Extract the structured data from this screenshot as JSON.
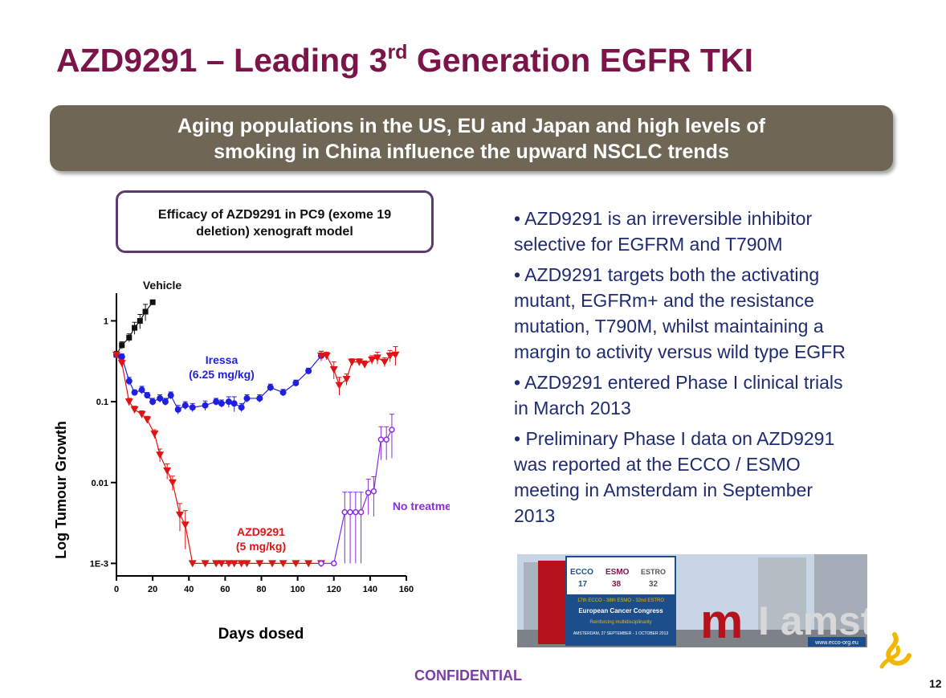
{
  "slide": {
    "title_main": "AZD9291 – Leading 3",
    "title_sup": "rd",
    "title_end": " Generation EGFR TKI",
    "banner_line1": "Aging populations in the US, EU and Japan and high levels of",
    "banner_line2": "smoking in China influence the upward NSCLC trends",
    "efficacy_line1": "Efficacy of AZD9291 in PC9 (exome 19",
    "efficacy_line2": "deletion) xenograft model",
    "bullets": [
      {
        "lines": [
          "• AZD9291 is an irreversible inhibitor",
          "selective for EGFRM and T790M"
        ]
      },
      {
        "lines": [
          "• AZD9291 targets both the activating",
          "mutant, EGFRm+  and the resistance",
          "mutation, T790M, whilst maintaining a",
          "margin to activity versus wild type EGFR"
        ]
      },
      {
        "lines": [
          "• AZD9291 entered Phase I clinical trials",
          "in March 2013"
        ]
      },
      {
        "lines": [
          "• Preliminary Phase I data on AZD9291",
          "was reported at the ECCO / ESMO",
          "meeting in Amsterdam in September",
          "2013"
        ]
      }
    ],
    "confidential": "CONFIDENTIAL",
    "page_number": "12"
  },
  "congress_image": {
    "logos": [
      "ECCO",
      "17",
      "ESMO",
      "38",
      "ESTRO",
      "32"
    ],
    "line1": "17th ECCO - 38th ESMO - 32nd ESTRO",
    "line2": "European Cancer Congress",
    "line3": "Reinforcing multidisciplinarity",
    "line4": "AMSTERDAM, 27 SEPTEMBER - 1 OCTOBER 2013",
    "website": "www.ecco-org.eu",
    "sign_text": "I amsterdam",
    "colors": {
      "panel": "#1c4e8c",
      "accent": "#f2b700",
      "sign": "#b5121b"
    }
  },
  "chart_data": {
    "type": "scatter",
    "xlabel": "Days dosed",
    "ylabel": "Log Tumour Growth",
    "xlim": [
      0,
      160
    ],
    "xticks": [
      0,
      20,
      40,
      60,
      80,
      100,
      120,
      140,
      160
    ],
    "ylim": [
      0.0007,
      2.2
    ],
    "yscale": "log",
    "yticks": [
      {
        "value": 1,
        "label": "1"
      },
      {
        "value": 0.1,
        "label": "0.1"
      },
      {
        "value": 0.01,
        "label": "0.01"
      },
      {
        "value": 0.001,
        "label": "1E-3"
      }
    ],
    "grid": false,
    "series": [
      {
        "name": "Vehicle",
        "label_lines": [
          "Vehicle"
        ],
        "color": "#111111",
        "marker": "square",
        "x": [
          0,
          3,
          7,
          10,
          13,
          16,
          20
        ],
        "y": [
          0.38,
          0.5,
          0.62,
          0.82,
          1.0,
          1.3,
          1.7
        ],
        "err": [
          0.04,
          0.05,
          0.07,
          0.14,
          0.2,
          0.3,
          0.1
        ]
      },
      {
        "name": "Iressa (6.25 mg/kg)",
        "label_lines": [
          "Iressa",
          "(6.25 mg/kg)"
        ],
        "color": "#1f1fe0",
        "marker": "circle",
        "x": [
          0,
          3,
          7,
          10,
          14,
          17,
          20,
          24,
          27,
          30,
          34,
          38,
          42,
          49,
          55,
          58,
          62,
          65,
          69,
          72,
          79,
          85,
          92,
          99,
          106,
          113
        ],
        "y": [
          0.38,
          0.36,
          0.18,
          0.13,
          0.14,
          0.12,
          0.1,
          0.11,
          0.1,
          0.12,
          0.08,
          0.09,
          0.085,
          0.09,
          0.1,
          0.095,
          0.1,
          0.095,
          0.085,
          0.11,
          0.11,
          0.15,
          0.13,
          0.17,
          0.24,
          0.37
        ],
        "err": [
          0.03,
          0.03,
          0.02,
          0.01,
          0.015,
          0.01,
          0.01,
          0.012,
          0.01,
          0.012,
          0.01,
          0.01,
          0.01,
          0.012,
          0.01,
          0.01,
          0.015,
          0.02,
          0.01,
          0.012,
          0.012,
          0.015,
          0.012,
          0.015,
          0.02,
          0.05
        ]
      },
      {
        "name": "Iressa → no treatment",
        "label_lines": [],
        "color": "#e01414",
        "marker": "triangle-down",
        "x": [
          113,
          116,
          120,
          123,
          127,
          130,
          134,
          137,
          141,
          144,
          148,
          151,
          154
        ],
        "y": [
          0.37,
          0.37,
          0.25,
          0.16,
          0.19,
          0.31,
          0.31,
          0.29,
          0.33,
          0.35,
          0.31,
          0.37,
          0.38
        ],
        "err": [
          0.05,
          0.04,
          0.06,
          0.04,
          0.03,
          0.03,
          0.03,
          0.03,
          0.04,
          0.06,
          0.04,
          0.06,
          0.1
        ]
      },
      {
        "name": "AZD9291 (5 mg/kg)",
        "label_lines": [
          "AZD9291",
          "(5 mg/kg)"
        ],
        "color": "#e01414",
        "marker": "triangle-down",
        "x": [
          0,
          3,
          7,
          10,
          14,
          17,
          21,
          24,
          28,
          31,
          35,
          38,
          42,
          49,
          55,
          58,
          62,
          65,
          69,
          72,
          79,
          86,
          92,
          99,
          106,
          113
        ],
        "y": [
          0.38,
          0.3,
          0.1,
          0.08,
          0.07,
          0.06,
          0.04,
          0.022,
          0.014,
          0.01,
          0.004,
          0.003,
          0.001,
          0.001,
          0.001,
          0.001,
          0.001,
          0.001,
          0.001,
          0.001,
          0.001,
          0.001,
          0.001,
          0.001,
          0.001,
          0.001
        ],
        "err": [
          0.03,
          0.03,
          0.01,
          0.008,
          0.007,
          0.006,
          0.005,
          0.004,
          0.003,
          0.002,
          0.0015,
          0.0015,
          0,
          0,
          0,
          0,
          0,
          0,
          0,
          0,
          0,
          0,
          0,
          0,
          0,
          0
        ]
      },
      {
        "name": "No treatment",
        "label_lines": [
          "No treatment"
        ],
        "color": "#8a2be2",
        "marker": "open-circle",
        "x": [
          113,
          120,
          126,
          129,
          132,
          135,
          139,
          142,
          146,
          149,
          152
        ],
        "y": [
          0.001,
          0.001,
          0.0043,
          0.0043,
          0.0043,
          0.0043,
          0.0075,
          0.0078,
          0.034,
          0.034,
          0.045
        ],
        "err": [
          0,
          0,
          0.0033,
          0.0033,
          0.0033,
          0.0033,
          0.0035,
          0.004,
          0.015,
          0.015,
          0.025
        ]
      }
    ]
  }
}
